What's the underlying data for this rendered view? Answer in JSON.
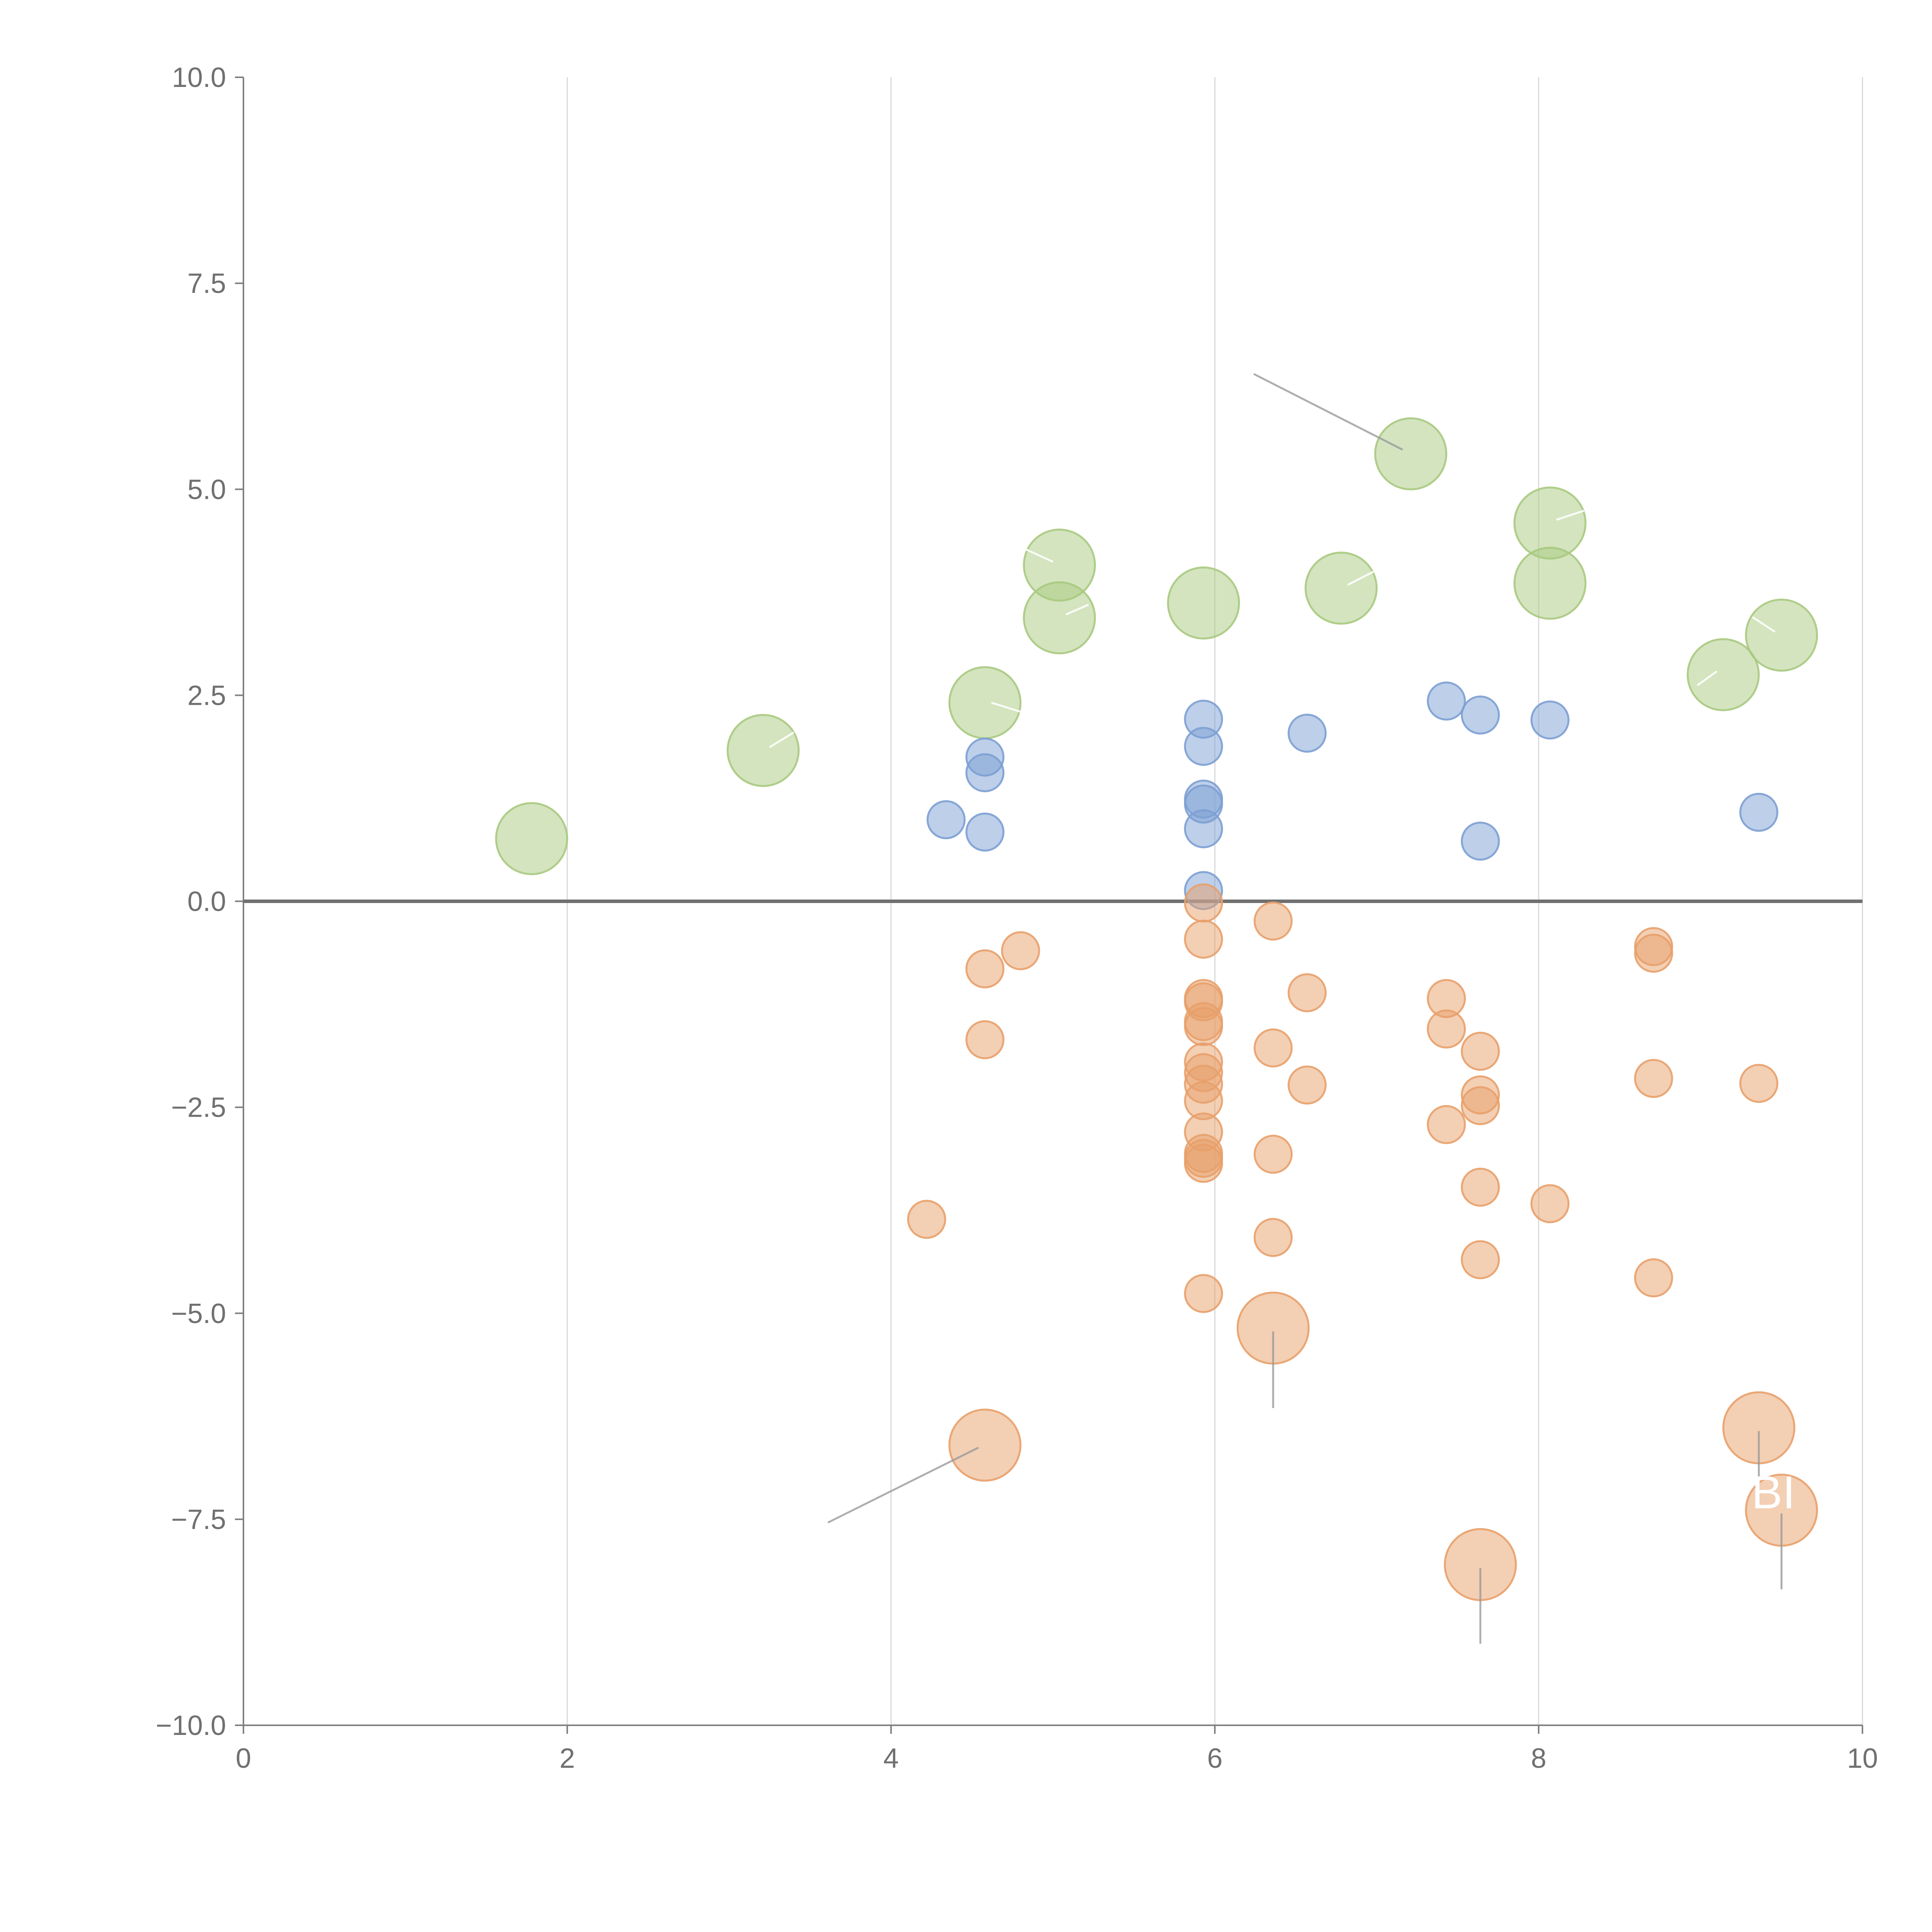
{
  "chart_data": {
    "type": "scatter",
    "title": "",
    "xlabel": "",
    "ylabel": "",
    "xlim": [
      0,
      10
    ],
    "ylim": [
      -10,
      10
    ],
    "x_ticks": [
      "0",
      "2",
      "4",
      "6",
      "8",
      "10"
    ],
    "y_ticks": [
      "−10.0",
      "−7.5",
      "−5.0",
      "−2.5",
      "0.0",
      "2.5",
      "5.0",
      "7.5",
      "10.0"
    ],
    "x_tick_values": [
      0,
      2,
      4,
      6,
      8,
      10
    ],
    "y_tick_values": [
      -10,
      -7.5,
      -5,
      -2.5,
      0,
      2.5,
      5,
      7.5,
      10
    ],
    "grid": "vertical",
    "zero_line": true,
    "colors": {
      "green": "#a8c97f",
      "blue": "#7c9fd3",
      "orange": "#e8a06a"
    },
    "series": [
      {
        "color_key": "green",
        "size": "large",
        "points": [
          {
            "x": 1.78,
            "y": 0.76
          },
          {
            "x": 3.21,
            "y": 1.83
          },
          {
            "x": 4.58,
            "y": 2.41
          },
          {
            "x": 5.04,
            "y": 4.08
          },
          {
            "x": 5.04,
            "y": 3.44
          },
          {
            "x": 5.93,
            "y": 3.62
          },
          {
            "x": 6.78,
            "y": 3.8
          },
          {
            "x": 7.21,
            "y": 5.43
          },
          {
            "x": 8.07,
            "y": 4.59
          },
          {
            "x": 8.07,
            "y": 3.86
          },
          {
            "x": 9.14,
            "y": 2.75
          },
          {
            "x": 9.5,
            "y": 3.23
          }
        ]
      },
      {
        "color_key": "blue",
        "size": "small",
        "points": [
          {
            "x": 4.34,
            "y": 0.99
          },
          {
            "x": 4.58,
            "y": 1.75
          },
          {
            "x": 4.58,
            "y": 1.56
          },
          {
            "x": 4.58,
            "y": 0.84
          },
          {
            "x": 5.93,
            "y": 2.21
          },
          {
            "x": 5.93,
            "y": 1.88
          },
          {
            "x": 5.93,
            "y": 1.24
          },
          {
            "x": 5.93,
            "y": 1.18
          },
          {
            "x": 5.93,
            "y": 0.88
          },
          {
            "x": 5.93,
            "y": 0.13
          },
          {
            "x": 6.57,
            "y": 2.04
          },
          {
            "x": 7.43,
            "y": 2.43
          },
          {
            "x": 7.64,
            "y": 2.26
          },
          {
            "x": 7.64,
            "y": 0.73
          },
          {
            "x": 8.07,
            "y": 2.2
          },
          {
            "x": 9.36,
            "y": 1.08
          }
        ]
      },
      {
        "color_key": "orange",
        "size": "small",
        "points": [
          {
            "x": 4.22,
            "y": -3.86
          },
          {
            "x": 4.58,
            "y": -0.82
          },
          {
            "x": 4.58,
            "y": -1.68
          },
          {
            "x": 4.8,
            "y": -0.6
          },
          {
            "x": 5.93,
            "y": -0.02
          },
          {
            "x": 5.93,
            "y": -0.46
          },
          {
            "x": 5.93,
            "y": -1.18
          },
          {
            "x": 5.93,
            "y": -1.22
          },
          {
            "x": 5.93,
            "y": -1.46
          },
          {
            "x": 5.93,
            "y": -1.52
          },
          {
            "x": 5.93,
            "y": -1.95
          },
          {
            "x": 5.93,
            "y": -2.08
          },
          {
            "x": 5.93,
            "y": -2.22
          },
          {
            "x": 5.93,
            "y": -2.42
          },
          {
            "x": 5.93,
            "y": -2.8
          },
          {
            "x": 5.93,
            "y": -3.06
          },
          {
            "x": 5.93,
            "y": -3.12
          },
          {
            "x": 5.93,
            "y": -3.18
          },
          {
            "x": 5.93,
            "y": -4.76
          },
          {
            "x": 6.36,
            "y": -0.24
          },
          {
            "x": 6.36,
            "y": -1.78
          },
          {
            "x": 6.36,
            "y": -3.07
          },
          {
            "x": 6.36,
            "y": -4.08
          },
          {
            "x": 6.57,
            "y": -1.11
          },
          {
            "x": 6.57,
            "y": -2.23
          },
          {
            "x": 7.43,
            "y": -1.18
          },
          {
            "x": 7.43,
            "y": -1.55
          },
          {
            "x": 7.43,
            "y": -2.71
          },
          {
            "x": 7.64,
            "y": -1.82
          },
          {
            "x": 7.64,
            "y": -2.35
          },
          {
            "x": 7.64,
            "y": -2.48
          },
          {
            "x": 7.64,
            "y": -3.47
          },
          {
            "x": 7.64,
            "y": -4.35
          },
          {
            "x": 8.07,
            "y": -3.67
          },
          {
            "x": 8.71,
            "y": -0.55
          },
          {
            "x": 8.71,
            "y": -0.63
          },
          {
            "x": 8.71,
            "y": -2.15
          },
          {
            "x": 8.71,
            "y": -4.57
          },
          {
            "x": 9.36,
            "y": -2.21
          }
        ]
      },
      {
        "color_key": "orange",
        "size": "large",
        "points": [
          {
            "x": 4.58,
            "y": -6.6
          },
          {
            "x": 6.36,
            "y": -5.18
          },
          {
            "x": 7.64,
            "y": -8.05
          },
          {
            "x": 9.36,
            "y": -6.39
          },
          {
            "x": 9.5,
            "y": -7.39
          }
        ]
      }
    ],
    "leader_lines": [
      {
        "color": "gray",
        "from": [
          7.16,
          5.48
        ],
        "to": [
          6.24,
          6.4
        ]
      },
      {
        "color": "gray",
        "from": [
          4.54,
          -6.63
        ],
        "to": [
          3.61,
          -7.54
        ]
      },
      {
        "color": "gray",
        "from": [
          6.36,
          -5.22
        ],
        "to": [
          6.36,
          -6.15
        ]
      },
      {
        "color": "gray",
        "from": [
          7.64,
          -8.09
        ],
        "to": [
          7.64,
          -9.01
        ]
      },
      {
        "color": "gray",
        "from": [
          9.36,
          -6.43
        ],
        "to": [
          9.36,
          -7.35
        ]
      },
      {
        "color": "gray",
        "from": [
          9.5,
          -7.43
        ],
        "to": [
          9.5,
          -8.35
        ]
      },
      {
        "color": "white",
        "from": [
          3.25,
          1.87
        ],
        "to": [
          3.4,
          2.05
        ]
      },
      {
        "color": "white",
        "from": [
          4.62,
          2.41
        ],
        "to": [
          4.8,
          2.3
        ]
      },
      {
        "color": "white",
        "from": [
          5.0,
          4.12
        ],
        "to": [
          4.8,
          4.3
        ]
      },
      {
        "color": "white",
        "from": [
          5.08,
          3.48
        ],
        "to": [
          5.22,
          3.6
        ]
      },
      {
        "color": "white",
        "from": [
          6.82,
          3.84
        ],
        "to": [
          6.98,
          4.0
        ]
      },
      {
        "color": "white",
        "from": [
          8.11,
          4.63
        ],
        "to": [
          8.28,
          4.74
        ]
      },
      {
        "color": "white",
        "from": [
          9.1,
          2.79
        ],
        "to": [
          8.98,
          2.62
        ]
      },
      {
        "color": "white",
        "from": [
          9.46,
          3.27
        ],
        "to": [
          9.32,
          3.45
        ]
      }
    ],
    "annotations": [
      {
        "text": "BI",
        "x": 9.45,
        "y": -7.18
      }
    ]
  }
}
